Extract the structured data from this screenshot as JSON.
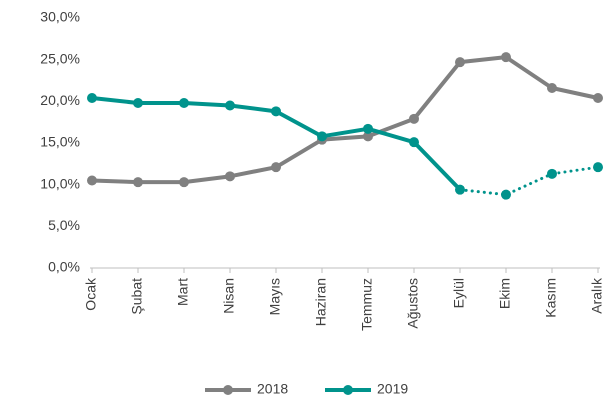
{
  "chart_data": {
    "type": "line",
    "categories": [
      "Ocak",
      "Şubat",
      "Mart",
      "Nisan",
      "Mayıs",
      "Haziran",
      "Temmuz",
      "Ağustos",
      "Eylül",
      "Ekim",
      "Kasım",
      "Aralık"
    ],
    "series": [
      {
        "name": "2018",
        "color": "#808080",
        "values": [
          10.5,
          10.3,
          10.3,
          11.0,
          12.1,
          15.4,
          15.8,
          17.9,
          24.7,
          25.3,
          21.6,
          20.4
        ]
      },
      {
        "name": "2019",
        "color": "#00938c",
        "values": [
          20.4,
          19.8,
          19.8,
          19.5,
          18.8,
          15.8,
          16.7,
          15.1,
          9.4,
          8.8,
          11.3,
          12.1
        ],
        "dotted_from": "Eylül"
      }
    ],
    "ylim": [
      0,
      30
    ],
    "yticks": [
      {
        "value": 0,
        "label": "0,0%"
      },
      {
        "value": 5,
        "label": "5,0%"
      },
      {
        "value": 10,
        "label": "10,0%"
      },
      {
        "value": 15,
        "label": "15,0%"
      },
      {
        "value": 20,
        "label": "20,0%"
      },
      {
        "value": 25,
        "label": "25,0%"
      },
      {
        "value": 30,
        "label": "30,0%"
      }
    ],
    "legend": "bottom"
  }
}
